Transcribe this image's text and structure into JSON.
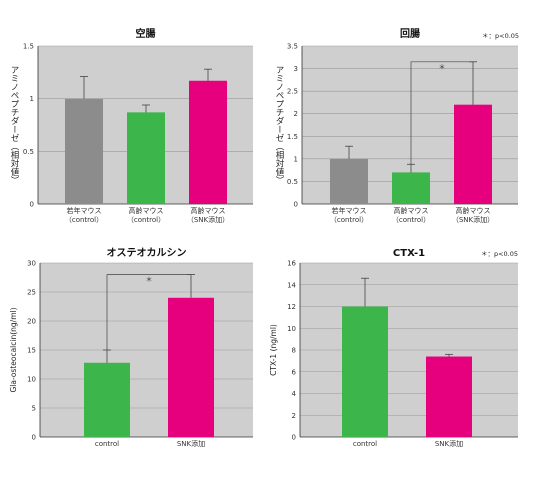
{
  "significance_note": "＊：p<0.05",
  "chart_data": [
    {
      "type": "bar",
      "title": "空腸",
      "ylabel": "アミノペプチダーゼ（相対値）",
      "ylim": [
        0,
        1.5
      ],
      "yticks": [
        "0",
        "0.5",
        "1",
        "1.5"
      ],
      "categories": [
        "若年マウス\n（control）",
        "高齢マウス\n（control）",
        "高齢マウス\n（SNK添加）"
      ],
      "values": [
        1.0,
        0.87,
        1.17
      ],
      "errors": [
        0.21,
        0.07,
        0.11
      ],
      "colors": [
        "#8c8c8c",
        "#3cb54a",
        "#e6007e"
      ],
      "grid": true,
      "significance": null
    },
    {
      "type": "bar",
      "title": "回腸",
      "ylabel": "アミノペプチダーゼ（相対値）",
      "ylim": [
        0,
        3.5
      ],
      "yticks": [
        "0",
        "0.5",
        "1",
        "1.5",
        "2",
        "2.5",
        "3",
        "3.5"
      ],
      "categories": [
        "若年マウス\n（control）",
        "高齢マウス\n（control）",
        "高齢マウス\n（SNK添加）"
      ],
      "values": [
        1.0,
        0.7,
        2.2
      ],
      "errors": [
        0.28,
        0.18,
        0.95
      ],
      "colors": [
        "#8c8c8c",
        "#3cb54a",
        "#e6007e"
      ],
      "grid": true,
      "significance": {
        "from": 1,
        "to": 2,
        "label": "＊"
      },
      "note": "＊：p<0.05"
    },
    {
      "type": "bar",
      "title": "オステオカルシン",
      "ylabel": "Gla-osteocalcin(ng/ml)",
      "ylim": [
        0,
        30
      ],
      "yticks": [
        "0",
        "5",
        "10",
        "15",
        "20",
        "25",
        "30"
      ],
      "categories": [
        "control",
        "SNK添加"
      ],
      "values": [
        12.8,
        24.0
      ],
      "errors": [
        2.2,
        4.0
      ],
      "colors": [
        "#3cb54a",
        "#e6007e"
      ],
      "grid": true,
      "significance": {
        "from": 0,
        "to": 1,
        "label": "＊"
      }
    },
    {
      "type": "bar",
      "title": "CTX-1",
      "ylabel": "CTX-1 (ng/ml)",
      "ylim": [
        0,
        16
      ],
      "yticks": [
        "0",
        "2",
        "4",
        "6",
        "8",
        "10",
        "12",
        "14",
        "16"
      ],
      "categories": [
        "control",
        "SNK添加"
      ],
      "values": [
        12.0,
        7.4
      ],
      "errors": [
        2.6,
        0.2
      ],
      "colors": [
        "#3cb54a",
        "#e6007e"
      ],
      "grid": true,
      "significance": null,
      "note": "＊：p<0.05"
    }
  ]
}
